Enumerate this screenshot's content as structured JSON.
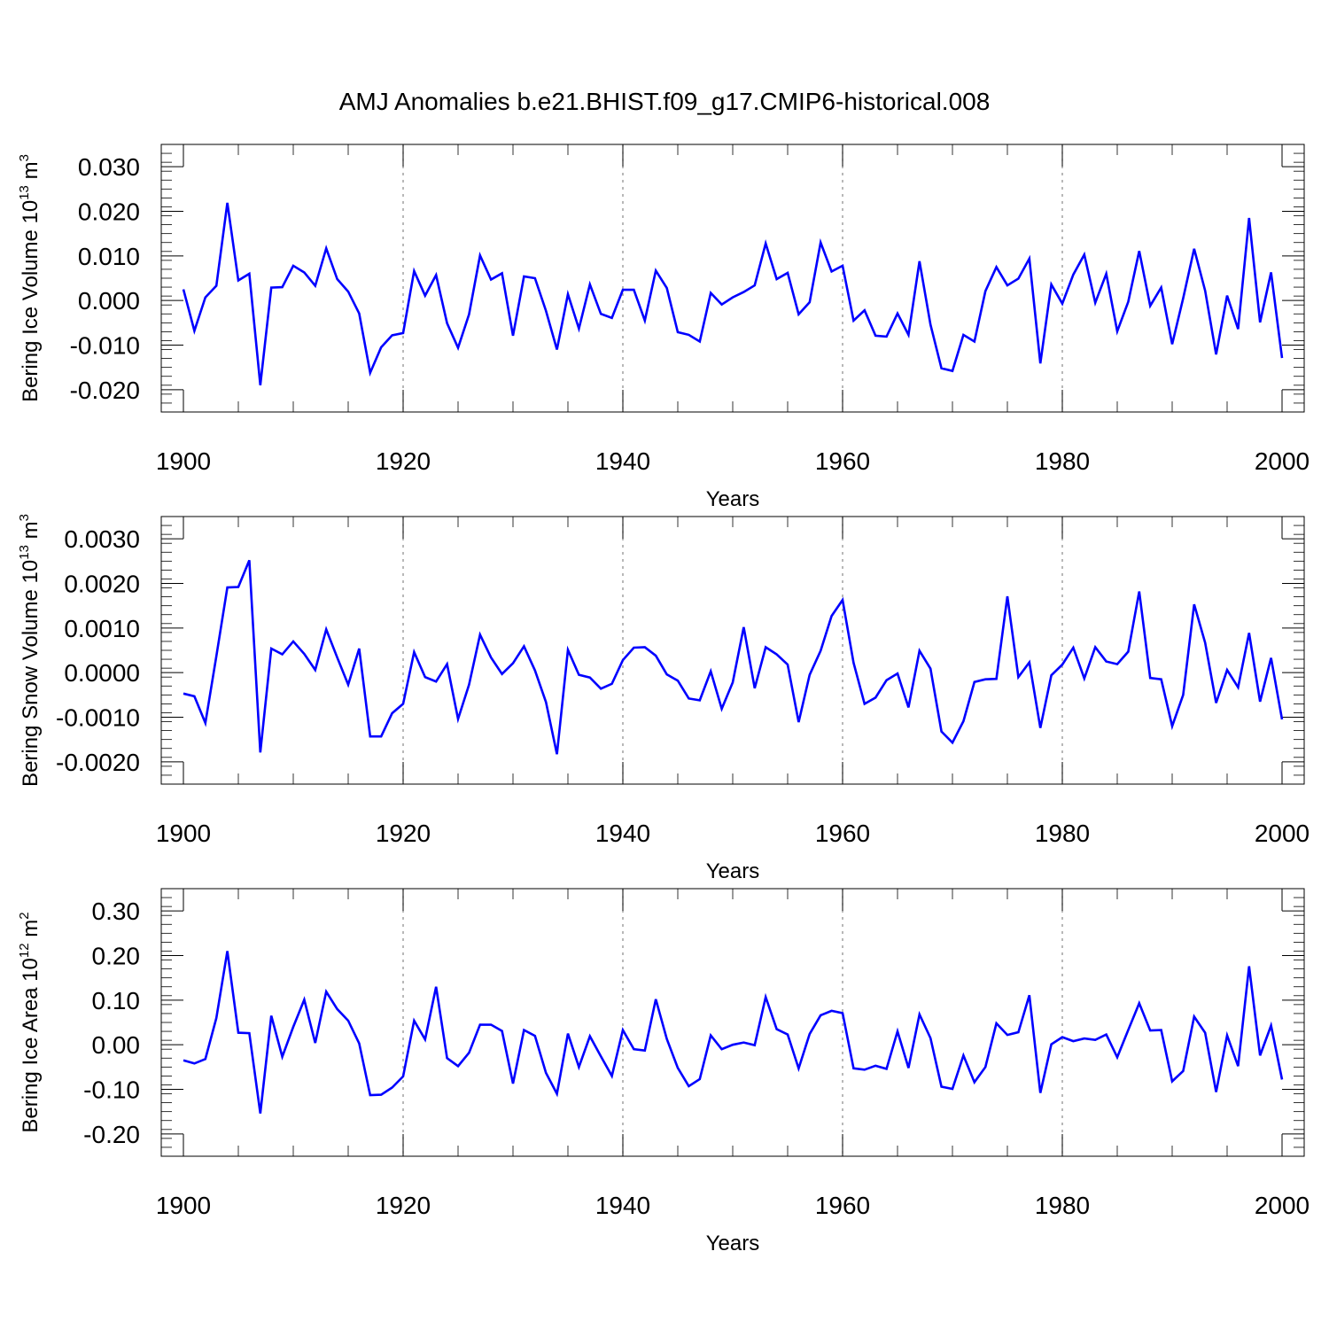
{
  "figure": {
    "title": "AMJ Anomalies b.e21.BHIST.f09_g17.CMIP6-historical.008"
  },
  "chart_data": [
    {
      "type": "line",
      "title": "AMJ Anomalies b.e21.BHIST.f09_g17.CMIP6-historical.008",
      "ylabel": "Bering Ice Volume 10",
      "ylabel_exp": "13",
      "ylabel_unit": " m",
      "ylabel_unit_exp": "3",
      "xlabel": "Years",
      "xlim": [
        1900,
        2000
      ],
      "ylim": [
        -0.025,
        0.035
      ],
      "yticks": [
        -0.02,
        -0.01,
        0.0,
        0.01,
        0.02,
        0.03
      ],
      "ytick_labels": [
        "-0.020",
        "-0.010",
        "0.000",
        "0.010",
        "0.020",
        "0.030"
      ],
      "xticks": [
        1900,
        1920,
        1940,
        1960,
        1980,
        2000
      ],
      "xtick_labels": [
        "1900",
        "1920",
        "1940",
        "1960",
        "1980",
        "2000"
      ],
      "grid_x": [
        1920,
        1940,
        1960,
        1980
      ],
      "series": [
        {
          "name": "Bering Ice Volume",
          "color": "#0000ff",
          "x_start": 1900,
          "values": [
            0.0025,
            -0.0068,
            0.0007,
            0.0033,
            0.0219,
            0.0045,
            0.006,
            -0.019,
            0.0029,
            0.003,
            0.0078,
            0.0063,
            0.0033,
            0.0117,
            0.0048,
            0.002,
            -0.0029,
            -0.0162,
            -0.0105,
            -0.0078,
            -0.0073,
            0.0066,
            0.0011,
            0.0057,
            -0.0051,
            -0.0106,
            -0.0031,
            0.0101,
            0.0047,
            0.0061,
            -0.0079,
            0.0054,
            0.005,
            -0.0023,
            -0.011,
            0.0014,
            -0.0063,
            0.0036,
            -0.003,
            -0.0039,
            0.0024,
            0.0024,
            -0.0045,
            0.0067,
            0.0028,
            -0.0071,
            -0.0077,
            -0.0092,
            0.0017,
            -0.0009,
            0.0007,
            0.0019,
            0.0034,
            0.0128,
            0.0048,
            0.0062,
            -0.0031,
            -0.0004,
            0.013,
            0.0065,
            0.0078,
            -0.0045,
            -0.0022,
            -0.0079,
            -0.0081,
            -0.0029,
            -0.0077,
            0.0088,
            -0.0054,
            -0.0152,
            -0.0158,
            -0.0077,
            -0.0092,
            0.0021,
            0.0075,
            0.0034,
            0.0049,
            0.0094,
            -0.0141,
            0.0036,
            -0.0007,
            0.0058,
            0.0103,
            -0.0005,
            0.006,
            -0.0069,
            -0.0003,
            0.0111,
            -0.0012,
            0.0029,
            -0.0098,
            0.0005,
            0.0116,
            0.0022,
            -0.0121,
            0.0011,
            -0.0064,
            0.0185,
            -0.0049,
            0.0063,
            -0.0129
          ]
        }
      ]
    },
    {
      "type": "line",
      "title": "",
      "ylabel": "Bering Snow Volume 10",
      "ylabel_exp": "13",
      "ylabel_unit": " m",
      "ylabel_unit_exp": "3",
      "xlabel": "Years",
      "xlim": [
        1900,
        2000
      ],
      "ylim": [
        -0.0025,
        0.0035
      ],
      "yticks": [
        -0.002,
        -0.001,
        0.0,
        0.001,
        0.002,
        0.003
      ],
      "ytick_labels": [
        "-0.0020",
        "-0.0010",
        "0.0000",
        "0.0010",
        "0.0020",
        "0.0030"
      ],
      "xticks": [
        1900,
        1920,
        1940,
        1960,
        1980,
        2000
      ],
      "xtick_labels": [
        "1900",
        "1920",
        "1940",
        "1960",
        "1980",
        "2000"
      ],
      "grid_x": [
        1920,
        1940,
        1960,
        1980
      ],
      "series": [
        {
          "name": "Bering Snow Volume",
          "color": "#0000ff",
          "x_start": 1900,
          "values": [
            -0.00047,
            -0.00053,
            -0.00113,
            0.00037,
            0.00191,
            0.00192,
            0.00252,
            -0.00179,
            0.00054,
            0.00041,
            0.0007,
            0.00042,
            6e-05,
            0.00097,
            0.00034,
            -0.00027,
            0.00054,
            -0.00143,
            -0.00143,
            -0.00091,
            -0.0007,
            0.00046,
            -0.0001,
            -0.0002,
            0.00019,
            -0.00104,
            -0.00027,
            0.00085,
            0.00034,
            -3e-05,
            0.00021,
            0.00059,
            5e-05,
            -0.00066,
            -0.00183,
            0.00051,
            -5e-05,
            -0.00011,
            -0.00036,
            -0.00025,
            0.00028,
            0.00056,
            0.00057,
            0.00038,
            -4e-05,
            -0.00018,
            -0.00058,
            -0.00062,
            3e-05,
            -0.00081,
            -0.00022,
            0.00102,
            -0.00035,
            0.00057,
            0.00041,
            0.00018,
            -0.00111,
            -5e-05,
            0.00049,
            0.00127,
            0.00163,
            0.00022,
            -0.0007,
            -0.00056,
            -0.00017,
            -2e-05,
            -0.00078,
            0.00049,
            9e-05,
            -0.00132,
            -0.00157,
            -0.00109,
            -0.00021,
            -0.00015,
            -0.00014,
            0.00171,
            -0.0001,
            0.00023,
            -0.00124,
            -6e-05,
            0.00018,
            0.00056,
            -0.00013,
            0.00057,
            0.00025,
            0.00019,
            0.00047,
            0.00182,
            -0.00012,
            -0.00015,
            -0.0012,
            -0.0005,
            0.00153,
            0.00067,
            -0.00068,
            6e-05,
            -0.00033,
            0.00089,
            -0.00065,
            0.00033,
            -0.00105
          ]
        }
      ]
    },
    {
      "type": "line",
      "title": "",
      "ylabel": "Bering Ice Area 10",
      "ylabel_exp": "12",
      "ylabel_unit": " m",
      "ylabel_unit_exp": "2",
      "xlabel": "Years",
      "xlim": [
        1900,
        2000
      ],
      "ylim": [
        -0.25,
        0.35
      ],
      "yticks": [
        -0.2,
        -0.1,
        0.0,
        0.1,
        0.2,
        0.3
      ],
      "ytick_labels": [
        "-0.20",
        "-0.10",
        "0.00",
        "0.10",
        "0.20",
        "0.30"
      ],
      "xticks": [
        1900,
        1920,
        1940,
        1960,
        1980,
        2000
      ],
      "xtick_labels": [
        "1900",
        "1920",
        "1940",
        "1960",
        "1980",
        "2000"
      ],
      "grid_x": [
        1920,
        1940,
        1960,
        1980
      ],
      "series": [
        {
          "name": "Bering Ice Area",
          "color": "#0000ff",
          "x_start": 1900,
          "values": [
            -0.035,
            -0.042,
            -0.032,
            0.06,
            0.21,
            0.027,
            0.026,
            -0.154,
            0.065,
            -0.027,
            0.04,
            0.101,
            0.004,
            0.119,
            0.08,
            0.054,
            0.003,
            -0.113,
            -0.112,
            -0.096,
            -0.071,
            0.054,
            0.012,
            0.13,
            -0.03,
            -0.048,
            -0.018,
            0.045,
            0.045,
            0.031,
            -0.087,
            0.033,
            0.02,
            -0.063,
            -0.11,
            0.025,
            -0.05,
            0.019,
            -0.026,
            -0.07,
            0.033,
            -0.01,
            -0.013,
            0.102,
            0.013,
            -0.052,
            -0.093,
            -0.077,
            0.021,
            -0.01,
            0.0,
            0.005,
            -0.001,
            0.107,
            0.035,
            0.023,
            -0.053,
            0.024,
            0.066,
            0.076,
            0.071,
            -0.053,
            -0.056,
            -0.047,
            -0.054,
            0.03,
            -0.052,
            0.068,
            0.015,
            -0.094,
            -0.099,
            -0.024,
            -0.084,
            -0.05,
            0.048,
            0.022,
            0.028,
            0.111,
            -0.108,
            0.001,
            0.017,
            0.008,
            0.014,
            0.011,
            0.023,
            -0.028,
            0.033,
            0.093,
            0.032,
            0.033,
            -0.082,
            -0.059,
            0.063,
            0.027,
            -0.106,
            0.021,
            -0.048,
            0.176,
            -0.024,
            0.043,
            -0.078
          ]
        }
      ]
    }
  ]
}
